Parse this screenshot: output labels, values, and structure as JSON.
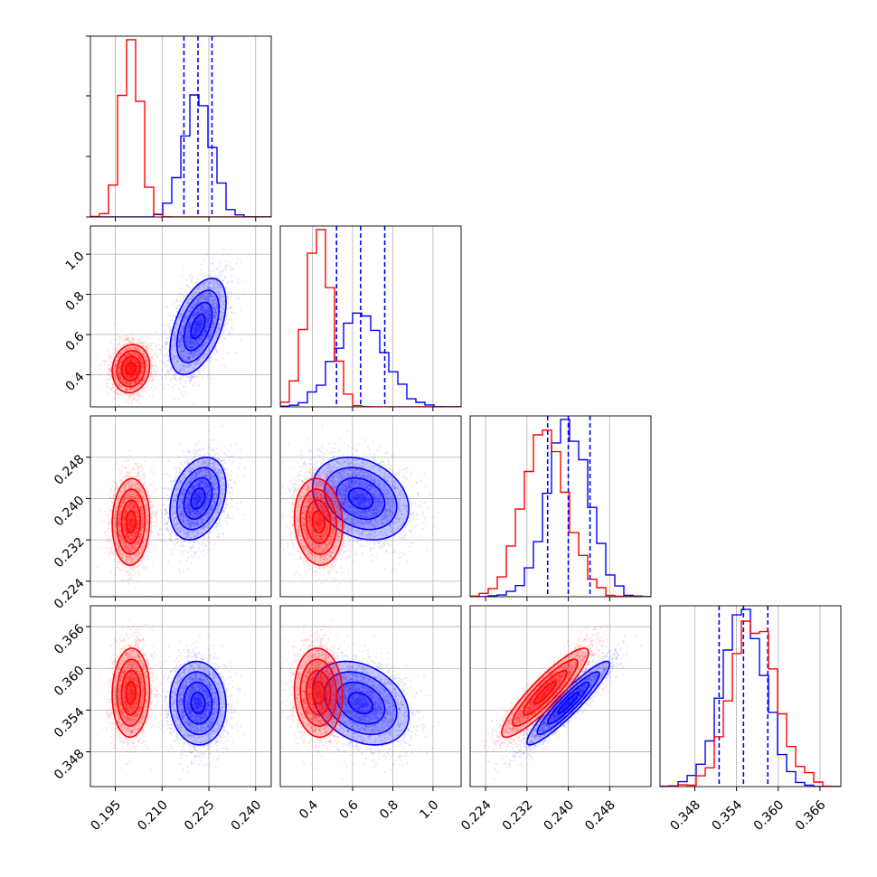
{
  "chart_data": {
    "type": "corner",
    "colors": {
      "series_a": "#0000ff",
      "series_b": "#ff0000"
    },
    "grid": true,
    "params": [
      {
        "range": [
          0.187,
          0.245
        ],
        "ticks": [
          0.195,
          0.21,
          0.225,
          0.24
        ],
        "tick_labels": [
          "0.195",
          "0.210",
          "0.225",
          "0.240"
        ]
      },
      {
        "range": [
          0.24,
          1.14
        ],
        "ticks": [
          0.4,
          0.6,
          0.8,
          1.0
        ],
        "tick_labels": [
          "0.4",
          "0.6",
          "0.8",
          "1.0"
        ]
      },
      {
        "range": [
          0.221,
          0.256
        ],
        "ticks": [
          0.224,
          0.232,
          0.24,
          0.248
        ],
        "tick_labels": [
          "0.224",
          "0.232",
          "0.240",
          "0.248"
        ]
      },
      {
        "range": [
          0.343,
          0.369
        ],
        "ticks": [
          0.348,
          0.354,
          0.36,
          0.366
        ],
        "tick_labels": [
          "0.348",
          "0.354",
          "0.360",
          "0.366"
        ]
      }
    ],
    "series": [
      {
        "key": "series_a",
        "mean": [
          0.2215,
          0.64,
          0.24,
          0.355
        ],
        "std": [
          0.0045,
          0.12,
          0.004,
          0.003
        ],
        "corr": [
          [
            0,
            1,
            0.5
          ],
          [
            0,
            2,
            0.3
          ],
          [
            0,
            3,
            -0.05
          ],
          [
            1,
            2,
            -0.25
          ],
          [
            1,
            3,
            -0.3
          ],
          [
            2,
            3,
            0.93
          ]
        ],
        "quantiles": [
          [
            0.217,
            0.2215,
            0.226
          ],
          [
            0.52,
            0.64,
            0.76
          ],
          [
            0.236,
            0.24,
            0.2442
          ],
          [
            0.3515,
            0.355,
            0.3585
          ]
        ]
      },
      {
        "key": "series_b",
        "mean": [
          0.2,
          0.43,
          0.2355,
          0.3565
        ],
        "std": [
          0.003,
          0.06,
          0.0042,
          0.0032
        ],
        "corr": [
          [
            0,
            1,
            0.1
          ],
          [
            0,
            2,
            0.05
          ],
          [
            0,
            3,
            0.05
          ],
          [
            1,
            2,
            -0.1
          ],
          [
            1,
            3,
            -0.05
          ],
          [
            2,
            3,
            0.9
          ]
        ],
        "quantiles": null
      }
    ]
  }
}
